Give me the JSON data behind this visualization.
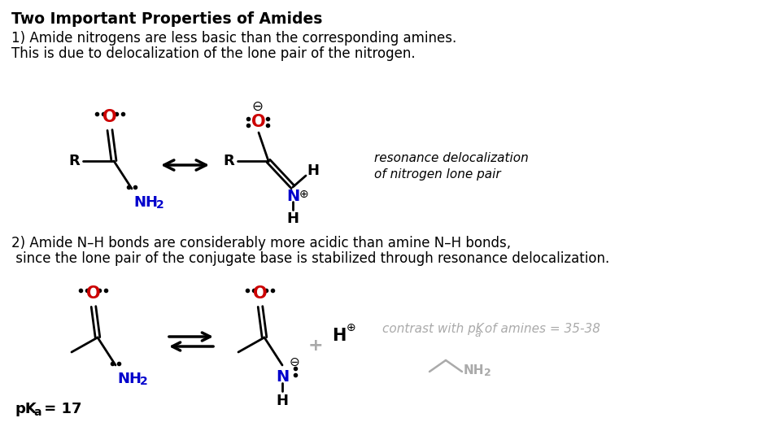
{
  "title": "Two Important Properties of Amides",
  "bg_color": "#ffffff",
  "text_color": "#000000",
  "red_color": "#cc0000",
  "blue_color": "#0000cc",
  "gray_color": "#aaaaaa",
  "section1_line1": "1) Amide nitrogens are less basic than the corresponding amines.",
  "section1_line2": "This is due to delocalization of the lone pair of the nitrogen.",
  "section2_line1": "2) Amide N–H bonds are considerably more acidic than amine N–H bonds,",
  "section2_line2": " since the lone pair of the conjugate base is stabilized through resonance delocalization.",
  "resonance_label1": "resonance delocalization",
  "resonance_label2": "of nitrogen lone pair"
}
